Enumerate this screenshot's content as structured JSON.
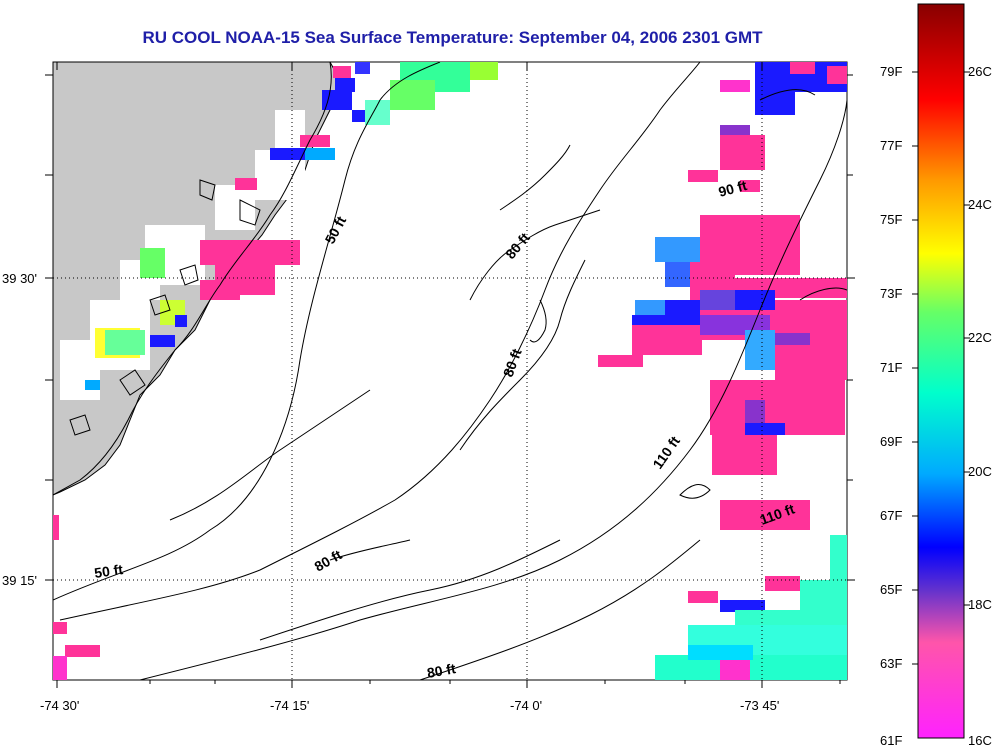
{
  "title": "RU COOL  NOAA-15  Sea Surface Temperature:  September 04, 2006 2301 GMT",
  "axes": {
    "x_ticks": [
      "-74 30'",
      "-74 15'",
      "-74 0'",
      "-73 45'"
    ],
    "y_ticks": [
      "39 30'",
      "39 15'"
    ]
  },
  "contour_labels": [
    "50 ft",
    "80 ft",
    "80 ft",
    "90 ft",
    "110 ft",
    "110 ft",
    "50 ft",
    "80 ft",
    "80 ft"
  ],
  "colorbar": {
    "fahrenheit": [
      "79F",
      "77F",
      "75F",
      "73F",
      "71F",
      "69F",
      "67F",
      "65F",
      "63F",
      "61F"
    ],
    "celsius": [
      "26C",
      "24C",
      "22C",
      "20C",
      "18C",
      "16C"
    ]
  },
  "colors": {
    "title": "#1f1fa8",
    "land": "#c8c8c8",
    "ocean": "#ffffff",
    "sst_warm": "#ff3399",
    "sst_cold": "#1a1aff",
    "sst_cyan": "#33ffcc"
  }
}
